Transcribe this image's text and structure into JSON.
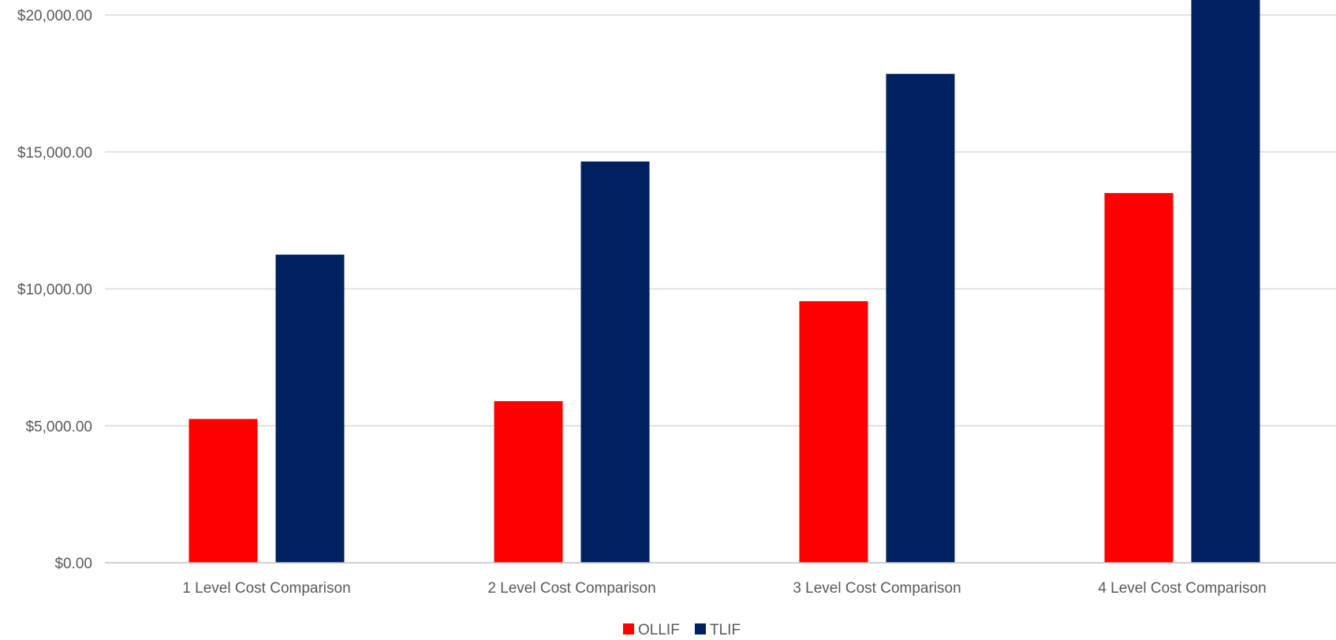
{
  "chart_data": {
    "type": "bar",
    "title": "",
    "xlabel": "",
    "ylabel": "",
    "categories": [
      "1 Level Cost Comparison",
      "2 Level Cost Comparison",
      "3 Level Cost Comparison",
      "4 Level Cost Comparison"
    ],
    "series": [
      {
        "name": "OLLIF",
        "color": "#ff0000",
        "values": [
          5250,
          5900,
          9550,
          13500
        ]
      },
      {
        "name": "TLIF",
        "color": "#002060",
        "values": [
          11250,
          14650,
          17850,
          21000
        ]
      }
    ],
    "ylim": [
      0,
      20000
    ],
    "yticks": [
      0,
      5000,
      10000,
      15000,
      20000
    ],
    "ytick_labels": [
      "$0.00",
      "$5,000.00",
      "$10,000.00",
      "$15,000.00",
      "$20,000.00"
    ],
    "grid": true,
    "legend_position": "bottom"
  }
}
